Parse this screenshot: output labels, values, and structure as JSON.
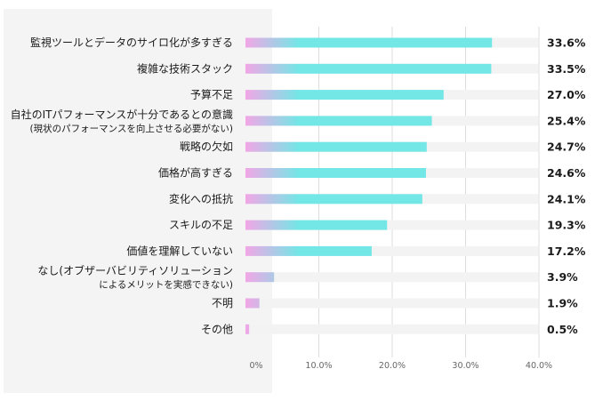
{
  "chart_data": {
    "type": "bar",
    "orientation": "horizontal",
    "categories": [
      [
        "監視ツールとデータのサイロ化が多すぎる"
      ],
      [
        "複雑な技術スタック"
      ],
      [
        "予算不足"
      ],
      [
        "自社のITパフォーマンスが十分であるとの意識",
        "(現状のパフォーマンスを向上させる必要がない)"
      ],
      [
        "戦略の欠如"
      ],
      [
        "価格が高すぎる"
      ],
      [
        "変化への抵抗"
      ],
      [
        "スキルの不足"
      ],
      [
        "価値を理解していない"
      ],
      [
        "なし(オブザーバビリティソリューション",
        "によるメリットを実感できない)"
      ],
      [
        "不明"
      ],
      [
        "その他"
      ]
    ],
    "values": [
      33.6,
      33.5,
      27.0,
      25.4,
      24.7,
      24.6,
      24.1,
      19.3,
      17.2,
      3.9,
      1.9,
      0.5
    ],
    "value_labels": [
      "33.6%",
      "33.5%",
      "27.0%",
      "25.4%",
      "24.7%",
      "24.6%",
      "24.1%",
      "19.3%",
      "17.2%",
      "3.9%",
      "1.9%",
      "0.5%"
    ],
    "xlim": [
      0,
      40
    ],
    "ticks": [
      0,
      10,
      20,
      30,
      40
    ],
    "tick_labels": [
      "0%",
      "10.0%",
      "20.0%",
      "30.0%",
      "40.0%"
    ],
    "grid": true,
    "colors": {
      "bar": "#73e6e6",
      "bar_start": "#f2a6e6",
      "track": "#f3f3f3",
      "label_panel": "#f4f4f4",
      "grid": "#dddddd"
    }
  }
}
